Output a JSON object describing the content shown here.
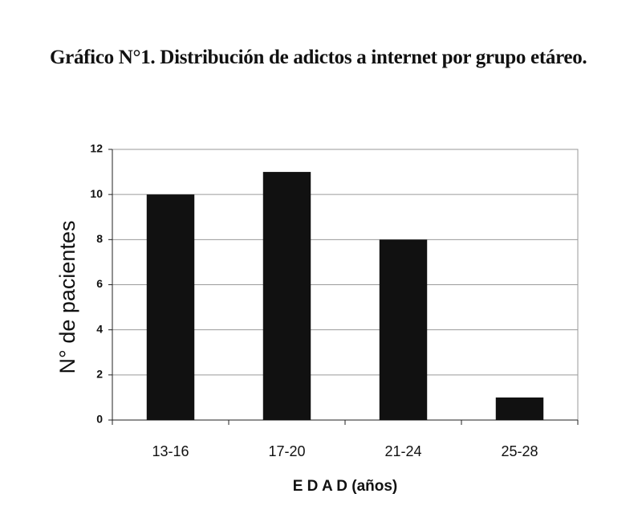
{
  "chart_data": {
    "type": "bar",
    "title": "Gráfico N°1. Distribución de adictos a internet por grupo etáreo.",
    "x_label": "E D A D (años)",
    "y_label": "N° de pacientes",
    "categories": [
      "13-16",
      "17-20",
      "21-24",
      "25-28"
    ],
    "values": [
      10,
      11,
      8,
      1
    ],
    "color": "#111111",
    "ylim": [
      0,
      12
    ],
    "yticks": [
      0,
      2,
      4,
      6,
      8,
      10,
      12
    ],
    "grid": true
  }
}
